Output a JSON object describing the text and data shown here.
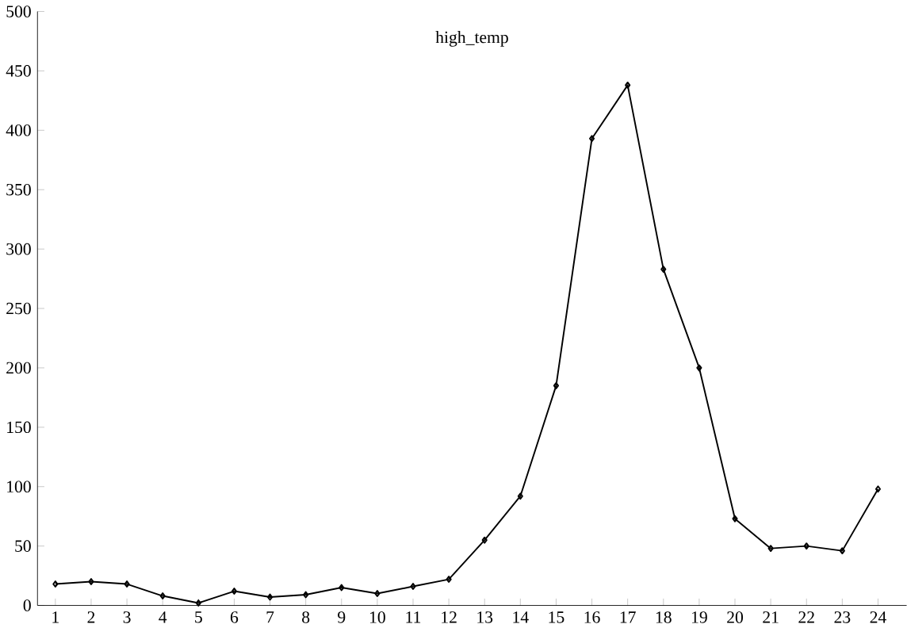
{
  "chart_data": {
    "type": "line",
    "title": "high_temp",
    "x": [
      1,
      2,
      3,
      4,
      5,
      6,
      7,
      8,
      9,
      10,
      11,
      12,
      13,
      14,
      15,
      16,
      17,
      18,
      19,
      20,
      21,
      22,
      23,
      24
    ],
    "series": [
      {
        "color": "#000000",
        "values": [
          18,
          20,
          18,
          8,
          2,
          12,
          7,
          9,
          15,
          10,
          16,
          22,
          55,
          92,
          185,
          393,
          438,
          283,
          200,
          73,
          48,
          50,
          46,
          98
        ]
      }
    ],
    "xlim": [
      0.5,
      24.8
    ],
    "xticks": [
      1,
      2,
      3,
      4,
      5,
      6,
      7,
      8,
      9,
      10,
      11,
      12,
      13,
      14,
      15,
      16,
      17,
      18,
      19,
      20,
      21,
      22,
      23,
      24
    ],
    "ylim": [
      0,
      500
    ],
    "yticks": [
      0,
      50,
      100,
      150,
      200,
      250,
      300,
      350,
      400,
      450,
      500
    ],
    "marker": "diamond",
    "line_style": "solid",
    "grid": false
  }
}
